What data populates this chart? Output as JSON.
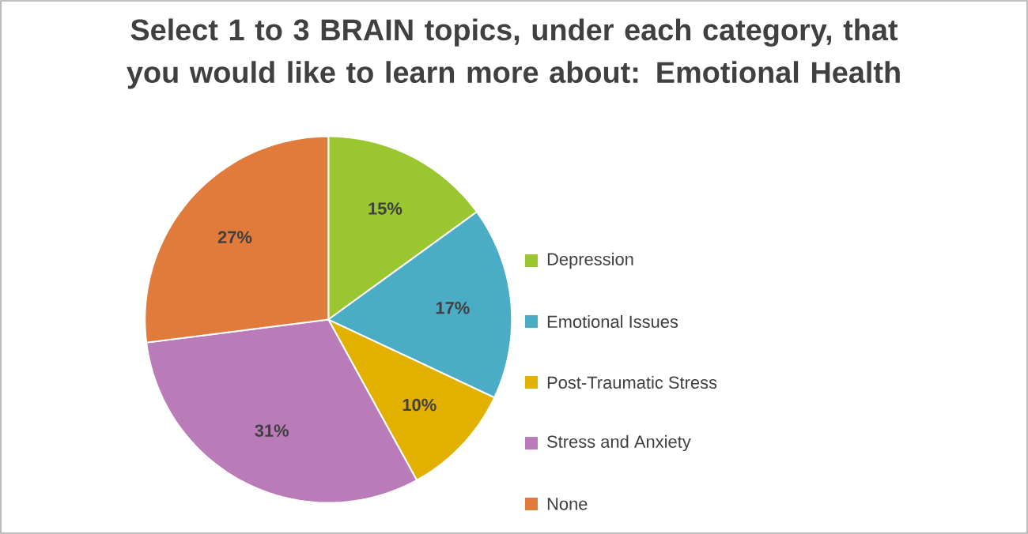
{
  "chart_data": {
    "type": "pie",
    "title": "Select 1 to 3 BRAIN topics, under each category, that you would like to learn more about: Emotional Health",
    "categories": [
      "Depression",
      "Emotional Issues",
      "Post-Traumatic Stress",
      "Stress and Anxiety",
      "None"
    ],
    "values": [
      15,
      17,
      10,
      31,
      27
    ],
    "colors": [
      "#9ac630",
      "#4bacc6",
      "#e2b100",
      "#b97cb9",
      "#e07b3c"
    ],
    "value_labels": [
      "15%",
      "17%",
      "10%",
      "31%",
      "27%"
    ],
    "legend": "right"
  }
}
